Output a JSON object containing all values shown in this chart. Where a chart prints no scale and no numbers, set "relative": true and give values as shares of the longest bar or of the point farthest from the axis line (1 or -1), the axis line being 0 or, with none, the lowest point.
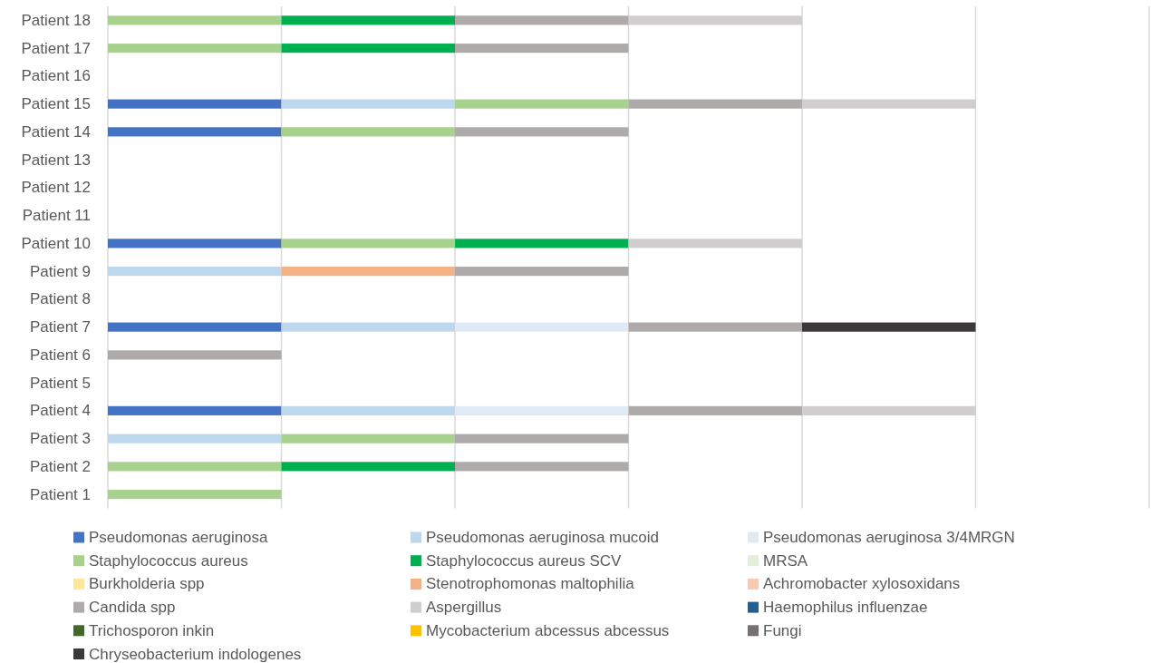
{
  "chart_data": {
    "type": "bar",
    "orientation": "horizontal",
    "stacked": true,
    "relative": true,
    "categories": [
      "Patient 18",
      "Patient 17",
      "Patient 16",
      "Patient 15",
      "Patient 14",
      "Patient 13",
      "Patient 12",
      "Patient 11",
      "Patient 10",
      "Patient 9",
      "Patient 8",
      "Patient 7",
      "Patient 6",
      "Patient 5",
      "Patient 4",
      "Patient 3",
      "Patient 2",
      "Patient 1"
    ],
    "series": [
      {
        "name": "Pseudomonas aeruginosa",
        "color": "#4472c4",
        "values": [
          null,
          null,
          null,
          0.2,
          0.2,
          null,
          null,
          null,
          0.2,
          null,
          null,
          0.2,
          null,
          null,
          0.2,
          null,
          null,
          null
        ]
      },
      {
        "name": "Pseudomonas aeruginosa mucoid",
        "color": "#bdd7ee",
        "values": [
          null,
          null,
          null,
          0.2,
          null,
          null,
          null,
          null,
          null,
          0.2,
          null,
          0.2,
          null,
          null,
          0.2,
          0.2,
          null,
          null
        ]
      },
      {
        "name": "Pseudomonas aeruginosa 3/4MRGN",
        "color": "#deebf7",
        "values": [
          null,
          null,
          null,
          null,
          null,
          null,
          null,
          null,
          null,
          null,
          null,
          0.2,
          null,
          null,
          0.2,
          null,
          null,
          null
        ]
      },
      {
        "name": "Staphylococcus aureus",
        "color": "#a9d18e",
        "values": [
          0.2,
          0.2,
          null,
          0.2,
          0.2,
          null,
          null,
          null,
          0.2,
          null,
          null,
          null,
          null,
          null,
          null,
          0.2,
          0.2,
          0.2
        ]
      },
      {
        "name": "Staphylococcus aureus SCV",
        "color": "#00b050",
        "values": [
          0.2,
          0.2,
          null,
          null,
          null,
          null,
          null,
          null,
          0.2,
          null,
          null,
          null,
          null,
          null,
          null,
          null,
          0.2,
          null
        ]
      },
      {
        "name": "MRSA",
        "color": "#e2f0d9",
        "values": [
          null,
          null,
          null,
          null,
          null,
          null,
          null,
          null,
          null,
          null,
          null,
          null,
          null,
          null,
          null,
          null,
          null,
          null
        ]
      },
      {
        "name": "Burkholderia spp",
        "color": "#ffe699",
        "values": [
          null,
          null,
          null,
          null,
          null,
          null,
          null,
          null,
          null,
          null,
          null,
          null,
          null,
          null,
          null,
          null,
          null,
          null
        ]
      },
      {
        "name": "Stenotrophomonas maltophilia",
        "color": "#f4b183",
        "values": [
          null,
          null,
          null,
          null,
          null,
          null,
          null,
          null,
          null,
          0.2,
          null,
          null,
          null,
          null,
          null,
          null,
          null,
          null
        ]
      },
      {
        "name": "Achromobacter xylosoxidans",
        "color": "#f8cbad",
        "values": [
          null,
          null,
          null,
          null,
          null,
          null,
          null,
          null,
          null,
          null,
          null,
          null,
          null,
          null,
          null,
          null,
          null,
          null
        ]
      },
      {
        "name": "Candida spp",
        "color": "#aeaaaa",
        "values": [
          0.2,
          0.2,
          null,
          0.2,
          0.2,
          null,
          null,
          null,
          null,
          0.2,
          null,
          0.2,
          0.2,
          null,
          0.2,
          0.2,
          0.2,
          null
        ]
      },
      {
        "name": "Aspergillus",
        "color": "#d0cece",
        "values": [
          0.2,
          null,
          null,
          0.2,
          null,
          null,
          null,
          null,
          0.2,
          null,
          null,
          null,
          null,
          null,
          0.2,
          null,
          null,
          null
        ]
      },
      {
        "name": "Haemophilus influenzae",
        "color": "#255e91",
        "values": [
          null,
          null,
          null,
          null,
          null,
          null,
          null,
          null,
          null,
          null,
          null,
          null,
          null,
          null,
          null,
          null,
          null,
          null
        ]
      },
      {
        "name": "Trichosporon inkin",
        "color": "#43682b",
        "values": [
          null,
          null,
          null,
          null,
          null,
          null,
          null,
          null,
          null,
          null,
          null,
          null,
          null,
          null,
          null,
          null,
          null,
          null
        ]
      },
      {
        "name": "Mycobacterium abcessus abcessus",
        "color": "#ffc000",
        "values": [
          null,
          null,
          null,
          null,
          null,
          null,
          null,
          null,
          null,
          null,
          null,
          null,
          null,
          null,
          null,
          null,
          null,
          null
        ]
      },
      {
        "name": "Fungi",
        "color": "#767171",
        "values": [
          null,
          null,
          null,
          null,
          null,
          null,
          null,
          null,
          null,
          null,
          null,
          null,
          null,
          null,
          null,
          null,
          null,
          null
        ]
      },
      {
        "name": "Chryseobacterium indologenes",
        "color": "#3a3838",
        "values": [
          null,
          null,
          null,
          null,
          null,
          null,
          null,
          null,
          null,
          null,
          null,
          0.2,
          null,
          null,
          null,
          null,
          null,
          null
        ]
      }
    ],
    "grid": "x",
    "legend": "bottom"
  }
}
